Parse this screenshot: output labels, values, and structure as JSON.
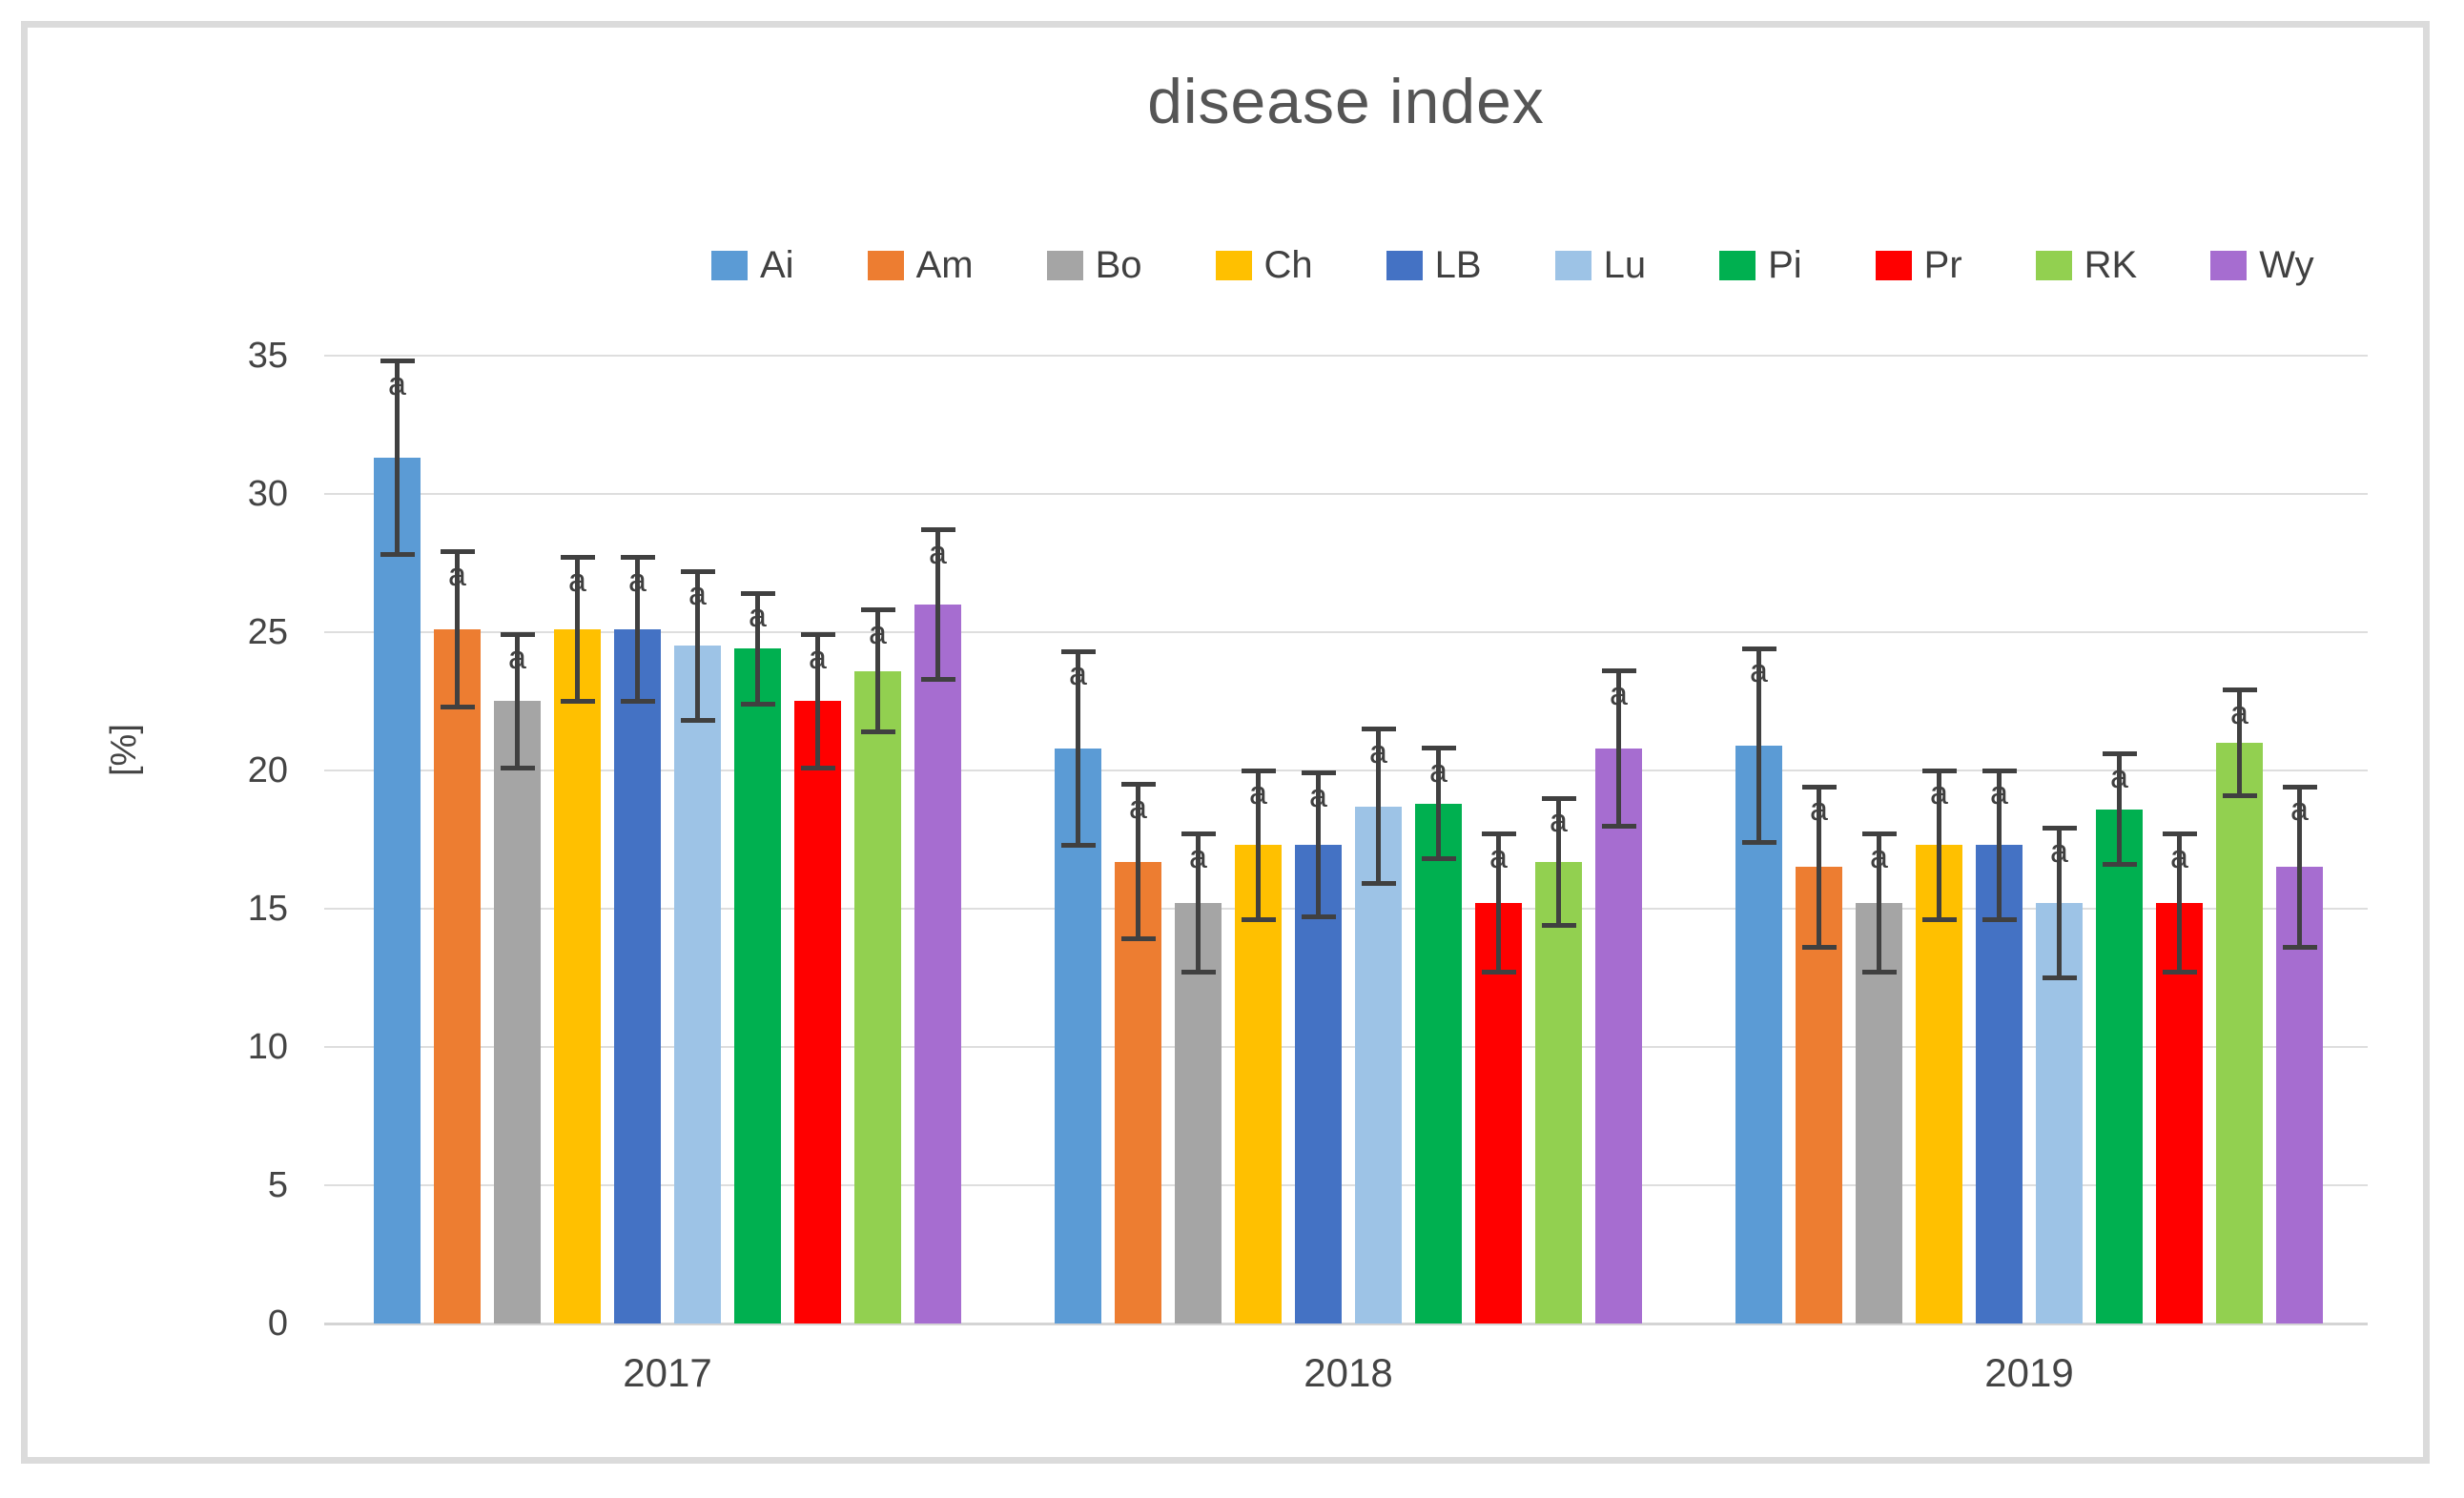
{
  "chart_data": {
    "type": "bar",
    "title": "disease index",
    "ylabel": "[%]",
    "ylim": [
      0,
      35
    ],
    "yticks": [
      0,
      5,
      10,
      15,
      20,
      25,
      30,
      35
    ],
    "grid": true,
    "legend_position": "top-center",
    "categories": [
      "2017",
      "2018",
      "2019"
    ],
    "series": [
      {
        "name": "Ai",
        "color": "#5B9BD5",
        "values": [
          31.3,
          20.8,
          20.9
        ],
        "errors": [
          3.5,
          3.5,
          3.5
        ]
      },
      {
        "name": "Am",
        "color": "#ED7D31",
        "values": [
          25.1,
          16.7,
          16.5
        ],
        "errors": [
          2.8,
          2.8,
          2.9
        ]
      },
      {
        "name": "Bo",
        "color": "#A5A5A5",
        "values": [
          22.5,
          15.2,
          15.2
        ],
        "errors": [
          2.4,
          2.5,
          2.5
        ]
      },
      {
        "name": "Ch",
        "color": "#FFC000",
        "values": [
          25.1,
          17.3,
          17.3
        ],
        "errors": [
          2.6,
          2.7,
          2.7
        ]
      },
      {
        "name": "LB",
        "color": "#4472C4",
        "values": [
          25.1,
          17.3,
          17.3
        ],
        "errors": [
          2.6,
          2.6,
          2.7
        ]
      },
      {
        "name": "Lu",
        "color": "#9DC3E6",
        "values": [
          24.5,
          18.7,
          15.2
        ],
        "errors": [
          2.7,
          2.8,
          2.7
        ]
      },
      {
        "name": "Pi",
        "color": "#00B050",
        "values": [
          24.4,
          18.8,
          18.6
        ],
        "errors": [
          2.0,
          2.0,
          2.0
        ]
      },
      {
        "name": "Pr",
        "color": "#FF0000",
        "values": [
          22.5,
          15.2,
          15.2
        ],
        "errors": [
          2.4,
          2.5,
          2.5
        ]
      },
      {
        "name": "RK",
        "color": "#92D050",
        "values": [
          23.6,
          16.7,
          21.0
        ],
        "errors": [
          2.2,
          2.3,
          1.9
        ]
      },
      {
        "name": "Wy",
        "color": "#A66DD0",
        "values": [
          26.0,
          20.8,
          16.5
        ],
        "errors": [
          2.7,
          2.8,
          2.9
        ]
      }
    ],
    "significance_letter": "a",
    "error_bar_color": "#404040",
    "gridline_color": "#DEDEDE"
  }
}
